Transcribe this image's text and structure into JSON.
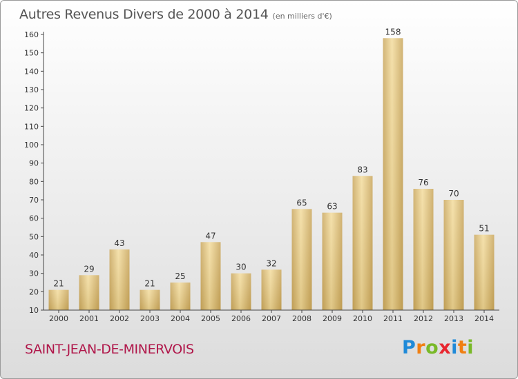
{
  "title": "Autres Revenus Divers de 2000 à 2014",
  "title_unit": "(en milliers d'€)",
  "commune": "SAINT-JEAN-DE-MINERVOIS",
  "logo": {
    "letters": [
      {
        "char": "P",
        "color": "#1f8ad8"
      },
      {
        "char": "r",
        "color": "#f07f12"
      },
      {
        "char": "o",
        "color": "#79b928"
      },
      {
        "char": "x",
        "color": "#e8262f"
      },
      {
        "char": "i",
        "color": "#1f8ad8"
      },
      {
        "char": "t",
        "color": "#f07f12"
      },
      {
        "char": "i",
        "color": "#79b928"
      }
    ]
  },
  "chart_data": {
    "type": "bar",
    "title": "Autres Revenus Divers de 2000 à 2014",
    "categories": [
      "2000",
      "2001",
      "2002",
      "2003",
      "2004",
      "2005",
      "2006",
      "2007",
      "2008",
      "2009",
      "2010",
      "2011",
      "2012",
      "2013",
      "2014"
    ],
    "values": [
      21,
      29,
      43,
      21,
      25,
      47,
      30,
      32,
      65,
      63,
      83,
      158,
      76,
      70,
      51
    ],
    "ylim": [
      10,
      160
    ],
    "yticks": [
      10,
      20,
      30,
      40,
      50,
      60,
      70,
      80,
      90,
      100,
      110,
      120,
      130,
      140,
      150,
      160
    ],
    "grid": false,
    "data_labels": true,
    "bar_color": "#e6cc85"
  }
}
